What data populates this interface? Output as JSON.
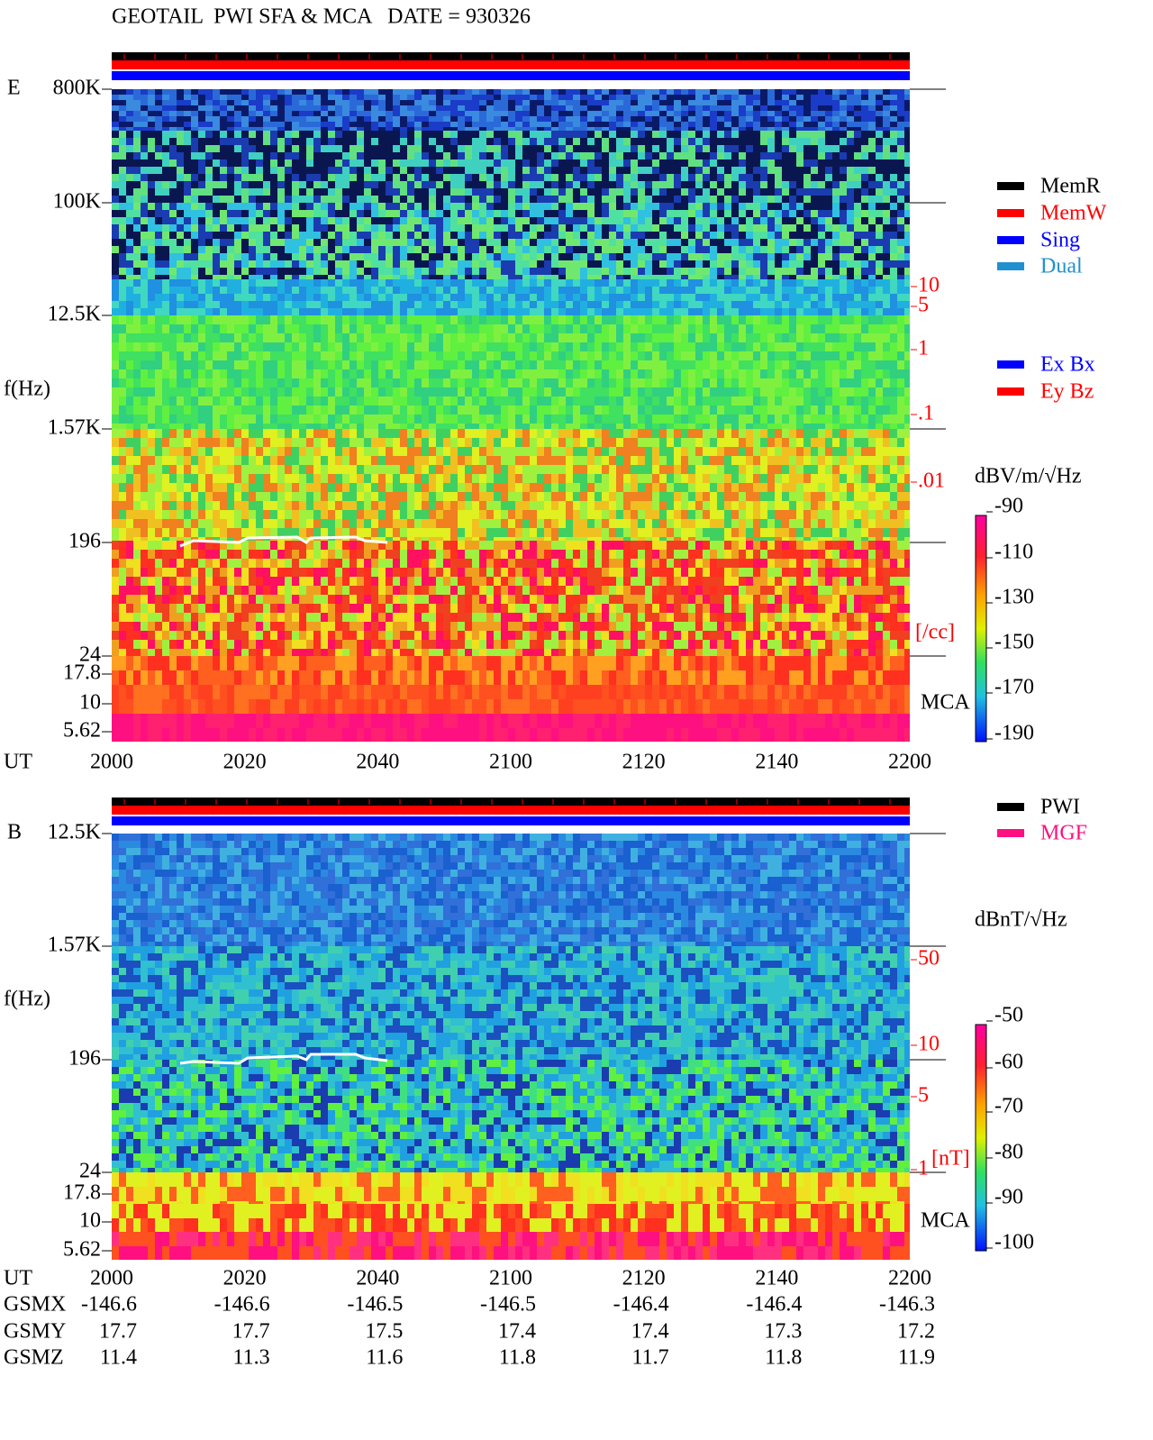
{
  "header": {
    "title": "GEOTAIL  PWI SFA & MCA   DATE = 930326"
  },
  "panel_e": {
    "label": "E",
    "freq_labels": [
      "800K",
      "100K",
      "12.5K",
      "1.57K",
      "196",
      "24",
      "17.8",
      "10",
      "5.62"
    ],
    "axis_label": "f(Hz)",
    "time_label": "UT",
    "times": [
      "2000",
      "2020",
      "2040",
      "2100",
      "2120",
      "2140",
      "2200"
    ],
    "density_labels": [
      "10",
      "5",
      "1",
      ".1",
      ".01"
    ],
    "density_unit": "[/cc]",
    "mca": "MCA",
    "legend": [
      "MemR",
      "MemW",
      "Sing",
      "Dual"
    ],
    "components": [
      "Ex Bx",
      "Ey Bz"
    ],
    "colorbar_title": "dBV/m/√Hz",
    "colorbar_labels": [
      "-90",
      "-110",
      "-130",
      "-150",
      "-170",
      "-190"
    ]
  },
  "panel_b": {
    "label": "B",
    "freq_labels": [
      "12.5K",
      "1.57K",
      "196",
      "24",
      "17.8",
      "10",
      "5.62"
    ],
    "axis_label": "f(Hz)",
    "time_label": "UT",
    "times": [
      "2000",
      "2020",
      "2040",
      "2100",
      "2120",
      "2140",
      "2200"
    ],
    "density_labels": [
      "50",
      "10",
      "5",
      "1"
    ],
    "density_unit": "[nT]",
    "mca": "MCA",
    "legend": [
      "PWI",
      "MGF"
    ],
    "colorbar_title": "dBnT/√Hz",
    "colorbar_labels": [
      "-50",
      "-60",
      "-70",
      "-80",
      "-90",
      "-100"
    ]
  },
  "ephemeris": {
    "rows": [
      {
        "label": "GSMX",
        "values": [
          "-146.6",
          "-146.6",
          "-146.5",
          "-146.5",
          "-146.4",
          "-146.4",
          "-146.3"
        ]
      },
      {
        "label": "GSMY",
        "values": [
          "17.7",
          "17.7",
          "17.5",
          "17.4",
          "17.4",
          "17.3",
          "17.2"
        ]
      },
      {
        "label": "GSMZ",
        "values": [
          "11.4",
          "11.3",
          "11.6",
          "11.8",
          "11.7",
          "11.8",
          "11.9"
        ]
      }
    ]
  }
}
